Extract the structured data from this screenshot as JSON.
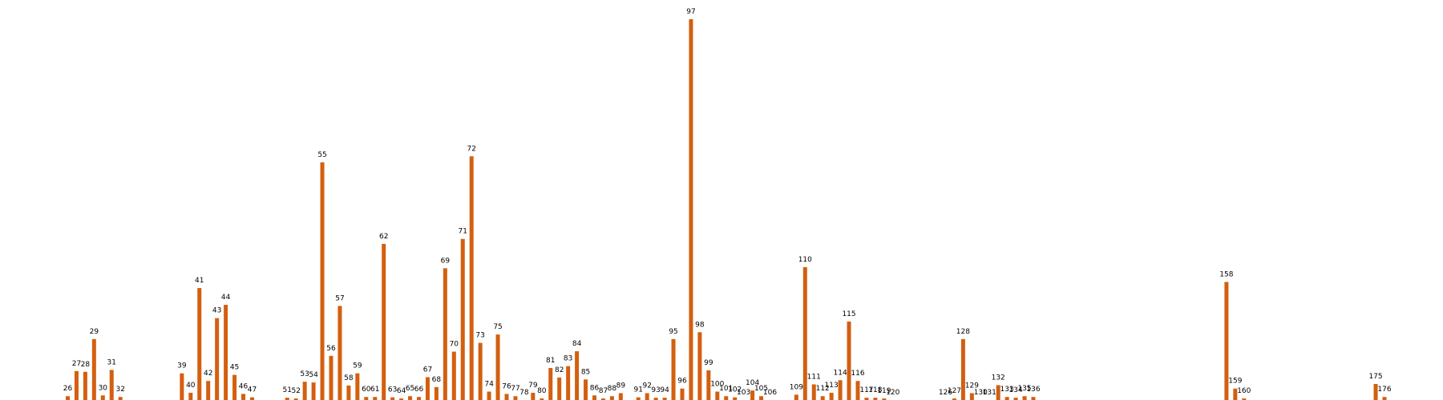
{
  "chart_data": {
    "type": "bar",
    "colors": {
      "bar": "#D35F0F",
      "label": "#000000",
      "background": "#FFFFFF"
    },
    "xlim": [
      20,
      182
    ],
    "ylim": [
      0,
      100
    ],
    "grid": false,
    "axes_visible": false,
    "points": [
      {
        "x": 26,
        "label": "26",
        "value": 1.0
      },
      {
        "x": 27,
        "label": "27",
        "value": 7.6
      },
      {
        "x": 28,
        "label": "28",
        "value": 7.4
      },
      {
        "x": 29,
        "label": "29",
        "value": 16.0
      },
      {
        "x": 30,
        "label": "30",
        "value": 1.2
      },
      {
        "x": 31,
        "label": "31",
        "value": 7.9
      },
      {
        "x": 32,
        "label": "32",
        "value": 0.8
      },
      {
        "x": 39,
        "label": "39",
        "value": 7.0
      },
      {
        "x": 40,
        "label": "40",
        "value": 1.9
      },
      {
        "x": 41,
        "label": "41",
        "value": 29.4
      },
      {
        "x": 42,
        "label": "42",
        "value": 5.0
      },
      {
        "x": 43,
        "label": "43",
        "value": 21.5
      },
      {
        "x": 44,
        "label": "44",
        "value": 25.0
      },
      {
        "x": 45,
        "label": "45",
        "value": 6.6
      },
      {
        "x": 46,
        "label": "46",
        "value": 1.6
      },
      {
        "x": 47,
        "label": "47",
        "value": 0.7
      },
      {
        "x": 51,
        "label": "51",
        "value": 0.6
      },
      {
        "x": 52,
        "label": "52",
        "value": 0.4
      },
      {
        "x": 53,
        "label": "53",
        "value": 4.8
      },
      {
        "x": 54,
        "label": "54",
        "value": 4.6
      },
      {
        "x": 55,
        "label": "55",
        "value": 62.4
      },
      {
        "x": 56,
        "label": "56",
        "value": 11.6
      },
      {
        "x": 57,
        "label": "57",
        "value": 24.7
      },
      {
        "x": 58,
        "label": "58",
        "value": 3.8
      },
      {
        "x": 59,
        "label": "59",
        "value": 7.0
      },
      {
        "x": 60,
        "label": "60",
        "value": 0.8
      },
      {
        "x": 61,
        "label": "61",
        "value": 0.8
      },
      {
        "x": 62,
        "label": "62",
        "value": 41.0
      },
      {
        "x": 63,
        "label": "63",
        "value": 0.7
      },
      {
        "x": 64,
        "label": "64",
        "value": 0.4
      },
      {
        "x": 65,
        "label": "65",
        "value": 1.0
      },
      {
        "x": 66,
        "label": "66",
        "value": 0.8
      },
      {
        "x": 67,
        "label": "67",
        "value": 6.0
      },
      {
        "x": 68,
        "label": "68",
        "value": 3.4
      },
      {
        "x": 69,
        "label": "69",
        "value": 34.6
      },
      {
        "x": 70,
        "label": "70",
        "value": 12.7
      },
      {
        "x": 71,
        "label": "71",
        "value": 42.3
      },
      {
        "x": 72,
        "label": "72",
        "value": 64.0
      },
      {
        "x": 73,
        "label": "73",
        "value": 15.0
      },
      {
        "x": 74,
        "label": "74",
        "value": 2.2
      },
      {
        "x": 75,
        "label": "75",
        "value": 17.2
      },
      {
        "x": 76,
        "label": "76",
        "value": 1.6
      },
      {
        "x": 77,
        "label": "77",
        "value": 1.0
      },
      {
        "x": 78,
        "label": "78",
        "value": 0.0
      },
      {
        "x": 79,
        "label": "79",
        "value": 1.9
      },
      {
        "x": 80,
        "label": "80",
        "value": 0.4
      },
      {
        "x": 81,
        "label": "81",
        "value": 8.4
      },
      {
        "x": 82,
        "label": "82",
        "value": 5.9
      },
      {
        "x": 83,
        "label": "83",
        "value": 8.9
      },
      {
        "x": 84,
        "label": "84",
        "value": 12.8
      },
      {
        "x": 85,
        "label": "85",
        "value": 5.4
      },
      {
        "x": 86,
        "label": "86",
        "value": 1.2
      },
      {
        "x": 87,
        "label": "87",
        "value": 0.4
      },
      {
        "x": 88,
        "label": "88",
        "value": 1.0
      },
      {
        "x": 89,
        "label": "89",
        "value": 1.8
      },
      {
        "x": 91,
        "label": "91",
        "value": 0.7
      },
      {
        "x": 92,
        "label": "92",
        "value": 1.8
      },
      {
        "x": 93,
        "label": "93",
        "value": 0.6
      },
      {
        "x": 94,
        "label": "94",
        "value": 0.6
      },
      {
        "x": 95,
        "label": "95",
        "value": 16.0
      },
      {
        "x": 96,
        "label": "96",
        "value": 3.0
      },
      {
        "x": 97,
        "label": "97",
        "value": 100.0
      },
      {
        "x": 98,
        "label": "98",
        "value": 17.8
      },
      {
        "x": 99,
        "label": "99",
        "value": 7.8
      },
      {
        "x": 100,
        "label": "100",
        "value": 2.2
      },
      {
        "x": 101,
        "label": "101",
        "value": 1.0
      },
      {
        "x": 102,
        "label": "102",
        "value": 0.7
      },
      {
        "x": 103,
        "label": "103",
        "value": 0.0
      },
      {
        "x": 104,
        "label": "104",
        "value": 2.5
      },
      {
        "x": 105,
        "label": "105",
        "value": 1.0
      },
      {
        "x": 106,
        "label": "106",
        "value": 0.0
      },
      {
        "x": 109,
        "label": "109",
        "value": 1.4
      },
      {
        "x": 110,
        "label": "110",
        "value": 34.9
      },
      {
        "x": 111,
        "label": "111",
        "value": 4.1
      },
      {
        "x": 112,
        "label": "112",
        "value": 1.0
      },
      {
        "x": 113,
        "label": "113",
        "value": 1.9
      },
      {
        "x": 114,
        "label": "114",
        "value": 5.2
      },
      {
        "x": 115,
        "label": "115",
        "value": 20.6
      },
      {
        "x": 116,
        "label": "116",
        "value": 5.0
      },
      {
        "x": 117,
        "label": "117",
        "value": 0.6
      },
      {
        "x": 118,
        "label": "118",
        "value": 0.6
      },
      {
        "x": 119,
        "label": "119",
        "value": 0.4
      },
      {
        "x": 120,
        "label": "120",
        "value": 0.0
      },
      {
        "x": 126,
        "label": "126",
        "value": 0.0
      },
      {
        "x": 127,
        "label": "127",
        "value": 0.4
      },
      {
        "x": 128,
        "label": "128",
        "value": 16.0
      },
      {
        "x": 129,
        "label": "129",
        "value": 1.8
      },
      {
        "x": 130,
        "label": "130",
        "value": 0.0
      },
      {
        "x": 131,
        "label": "131",
        "value": 0.0
      },
      {
        "x": 132,
        "label": "132",
        "value": 3.9
      },
      {
        "x": 133,
        "label": "133",
        "value": 0.8
      },
      {
        "x": 134,
        "label": "134",
        "value": 0.6
      },
      {
        "x": 135,
        "label": "135",
        "value": 1.0
      },
      {
        "x": 136,
        "label": "136",
        "value": 0.8
      },
      {
        "x": 158,
        "label": "158",
        "value": 31.0
      },
      {
        "x": 159,
        "label": "159",
        "value": 3.0
      },
      {
        "x": 160,
        "label": "160",
        "value": 0.4
      },
      {
        "x": 175,
        "label": "175",
        "value": 4.2
      },
      {
        "x": 176,
        "label": "176",
        "value": 0.8
      }
    ]
  }
}
